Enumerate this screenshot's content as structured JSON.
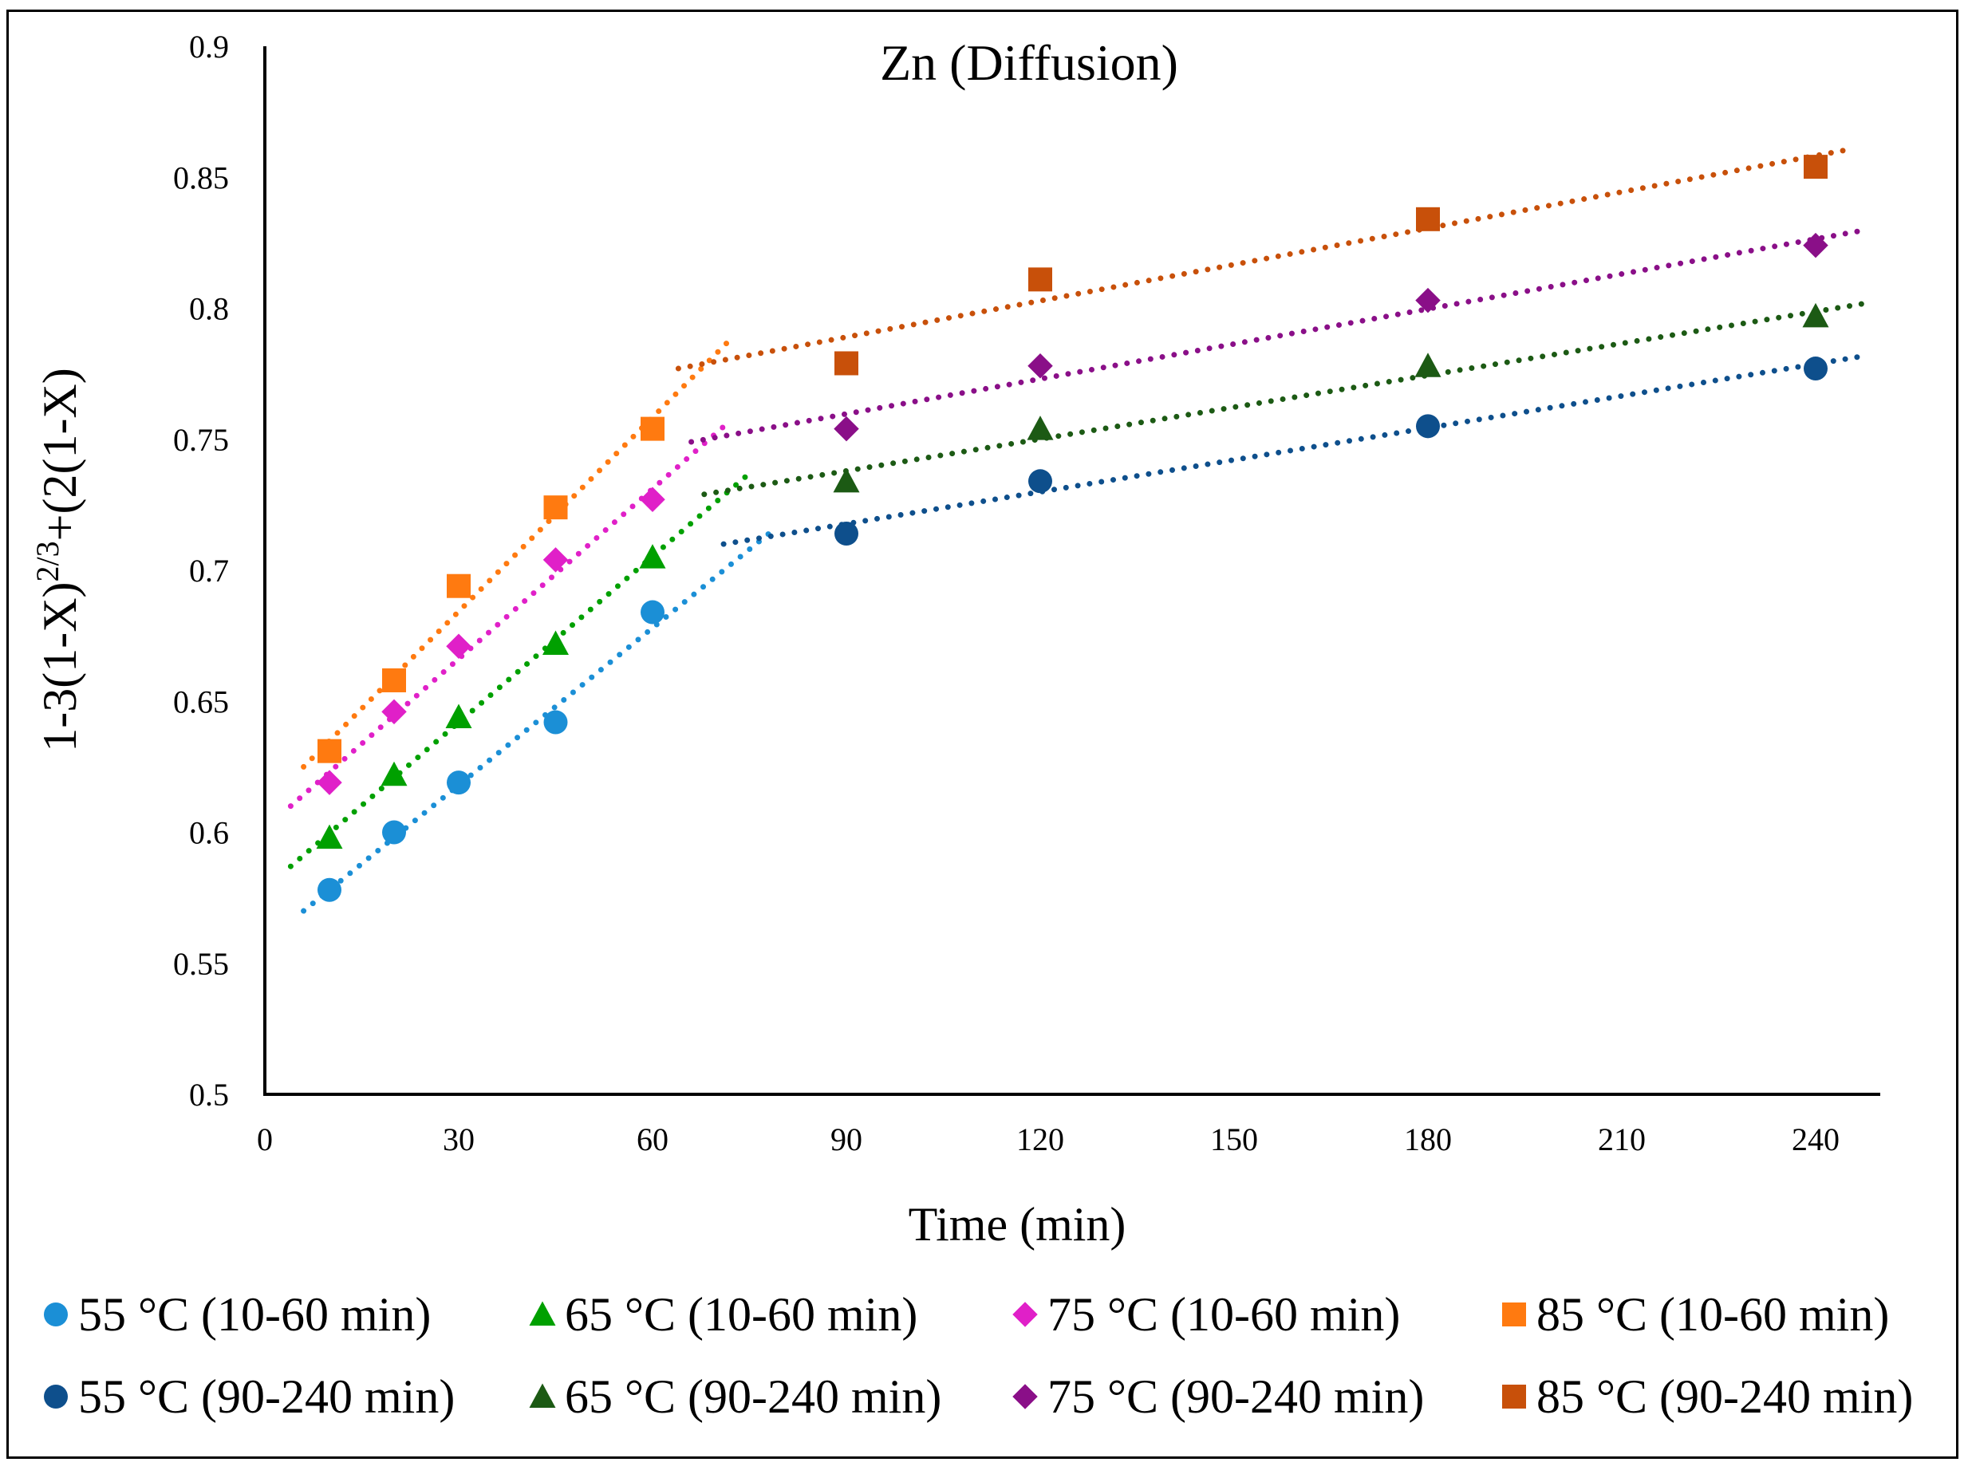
{
  "chart_data": {
    "type": "scatter",
    "title": "Zn (Diffusion)",
    "xlabel": "Time (min)",
    "ylabel": "1-3(1-X)",
    "ylabel_sup": "2/3",
    "ylabel_tail": "+(2(1-X)",
    "xlim": [
      0,
      250
    ],
    "ylim": [
      0.5,
      0.9
    ],
    "x_ticks": [
      "0",
      "30",
      "60",
      "90",
      "120",
      "150",
      "180",
      "210",
      "240"
    ],
    "y_ticks": [
      "0.5",
      "0.55",
      "0.6",
      "0.65",
      "0.7",
      "0.75",
      "0.8",
      "0.85",
      "0.9"
    ],
    "legend_position": "bottom",
    "series": [
      {
        "name": "55 °C (10-60 min)",
        "marker": "circle",
        "color": "#1b8fd6",
        "x": [
          10,
          20,
          30,
          45,
          60
        ],
        "y": [
          0.578,
          0.6,
          0.619,
          0.642,
          0.684
        ],
        "trend": {
          "x": [
            6,
            79
          ],
          "y": [
            0.57,
            0.716
          ]
        }
      },
      {
        "name": "65 °C (10-60 min)",
        "marker": "triangle",
        "color": "#00a000",
        "x": [
          10,
          20,
          30,
          45,
          60
        ],
        "y": [
          0.598,
          0.622,
          0.644,
          0.672,
          0.705
        ],
        "trend": {
          "x": [
            4,
            75
          ],
          "y": [
            0.587,
            0.737
          ]
        }
      },
      {
        "name": "75 °C (10-60 min)",
        "marker": "diamond",
        "color": "#e020c8",
        "x": [
          10,
          20,
          30,
          45,
          60
        ],
        "y": [
          0.619,
          0.646,
          0.671,
          0.704,
          0.727
        ],
        "trend": {
          "x": [
            4,
            72
          ],
          "y": [
            0.61,
            0.757
          ]
        }
      },
      {
        "name": "85 °C (10-60 min)",
        "marker": "square",
        "color": "#ff7a10",
        "x": [
          10,
          20,
          30,
          45,
          60
        ],
        "y": [
          0.631,
          0.658,
          0.694,
          0.724,
          0.754
        ],
        "trend": {
          "x": [
            6,
            72
          ],
          "y": [
            0.625,
            0.788
          ]
        }
      },
      {
        "name": "55 °C (90-240 min)",
        "marker": "circle",
        "color": "#0e4f8c",
        "x": [
          90,
          120,
          180,
          240
        ],
        "y": [
          0.714,
          0.734,
          0.755,
          0.777
        ],
        "trend": {
          "x": [
            71,
            248
          ],
          "y": [
            0.71,
            0.782
          ]
        }
      },
      {
        "name": "65 °C (90-240 min)",
        "marker": "triangle",
        "color": "#1c5a14",
        "x": [
          90,
          120,
          180,
          240
        ],
        "y": [
          0.734,
          0.754,
          0.778,
          0.797
        ],
        "trend": {
          "x": [
            68,
            248
          ],
          "y": [
            0.729,
            0.802
          ]
        }
      },
      {
        "name": "75 °C (90-240 min)",
        "marker": "diamond",
        "color": "#8a0f88",
        "x": [
          90,
          120,
          180,
          240
        ],
        "y": [
          0.754,
          0.778,
          0.803,
          0.824
        ],
        "trend": {
          "x": [
            66,
            248
          ],
          "y": [
            0.749,
            0.83
          ]
        }
      },
      {
        "name": "85 °C (90-240 min)",
        "marker": "square",
        "color": "#c8500a",
        "x": [
          90,
          120,
          180,
          240
        ],
        "y": [
          0.779,
          0.811,
          0.834,
          0.854
        ],
        "trend": {
          "x": [
            64,
            246
          ],
          "y": [
            0.777,
            0.861
          ]
        }
      }
    ]
  }
}
